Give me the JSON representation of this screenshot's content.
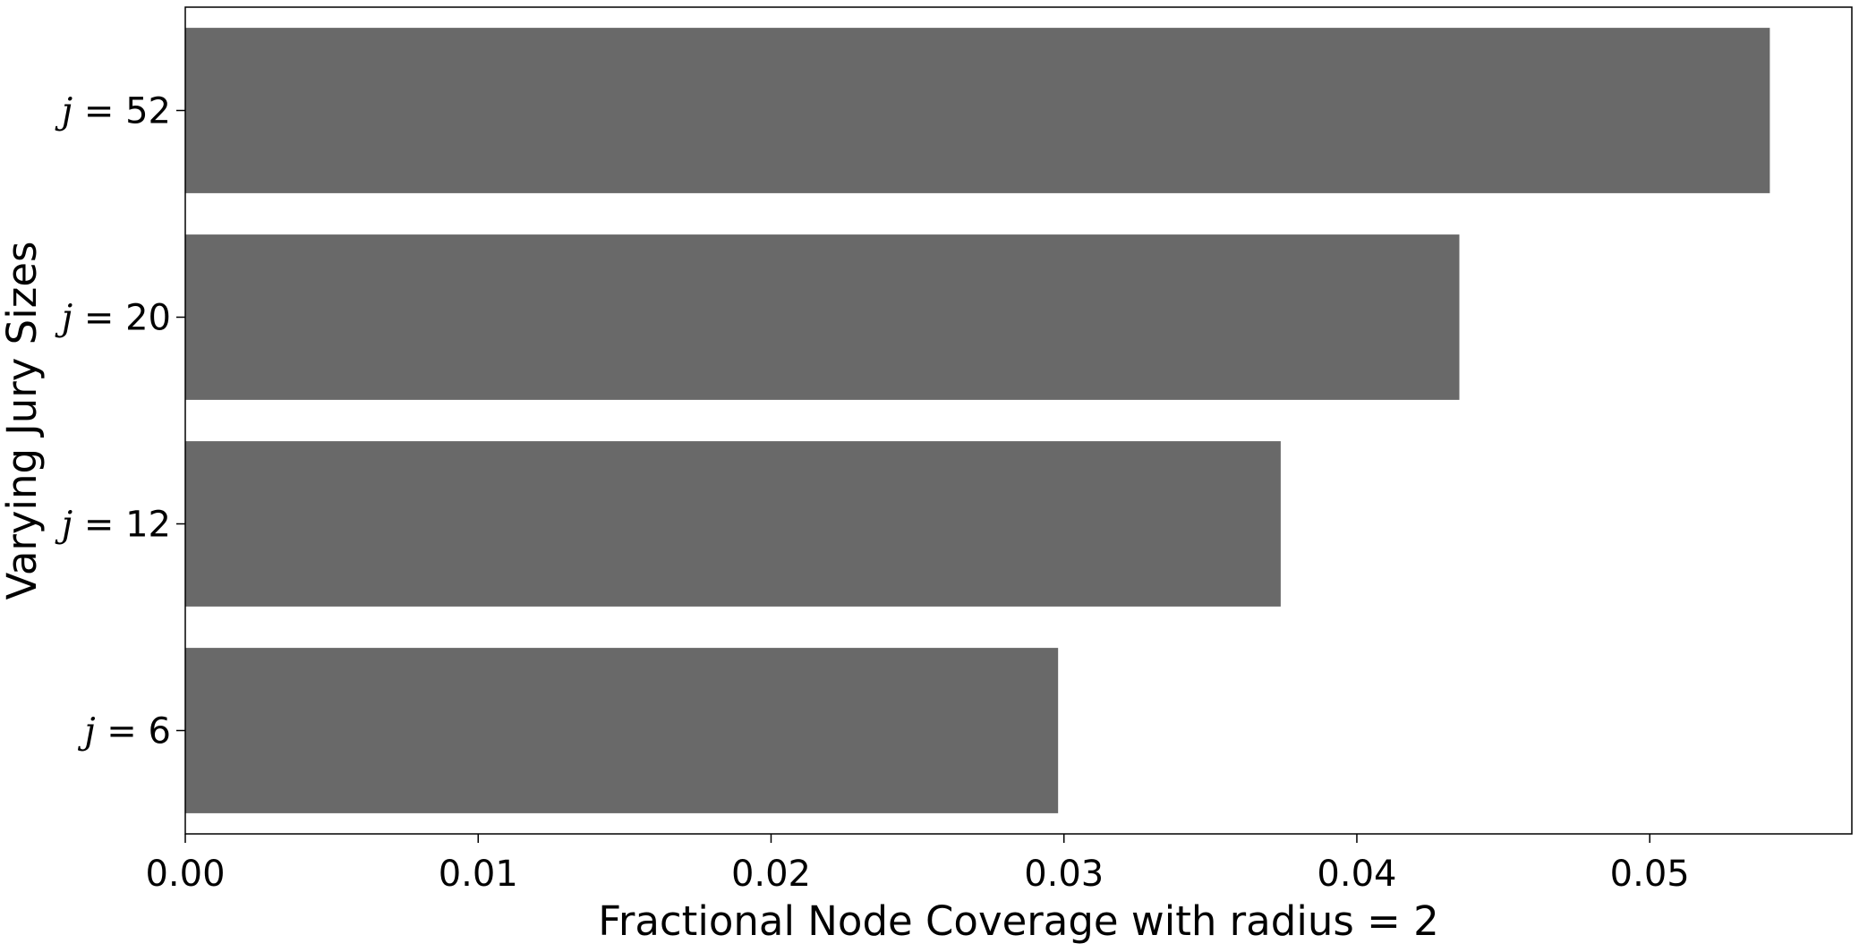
{
  "chart_data": {
    "type": "bar",
    "orientation": "horizontal",
    "title": "",
    "xlabel": "Fractional Node Coverage with radius = 2",
    "ylabel": "Varying Jury Sizes",
    "categories": [
      {
        "var": "j",
        "eq": " = ",
        "value": "6"
      },
      {
        "var": "j",
        "eq": " = ",
        "value": "12"
      },
      {
        "var": "j",
        "eq": " = ",
        "value": "20"
      },
      {
        "var": "j",
        "eq": " = ",
        "value": "52"
      }
    ],
    "values": [
      0.0298,
      0.0374,
      0.0435,
      0.0541
    ],
    "xlim": [
      0,
      0.0569
    ],
    "xticks": [
      "0.00",
      "0.01",
      "0.02",
      "0.03",
      "0.04",
      "0.05"
    ],
    "bar_color": "#696969",
    "grid": false,
    "legend": false
  }
}
